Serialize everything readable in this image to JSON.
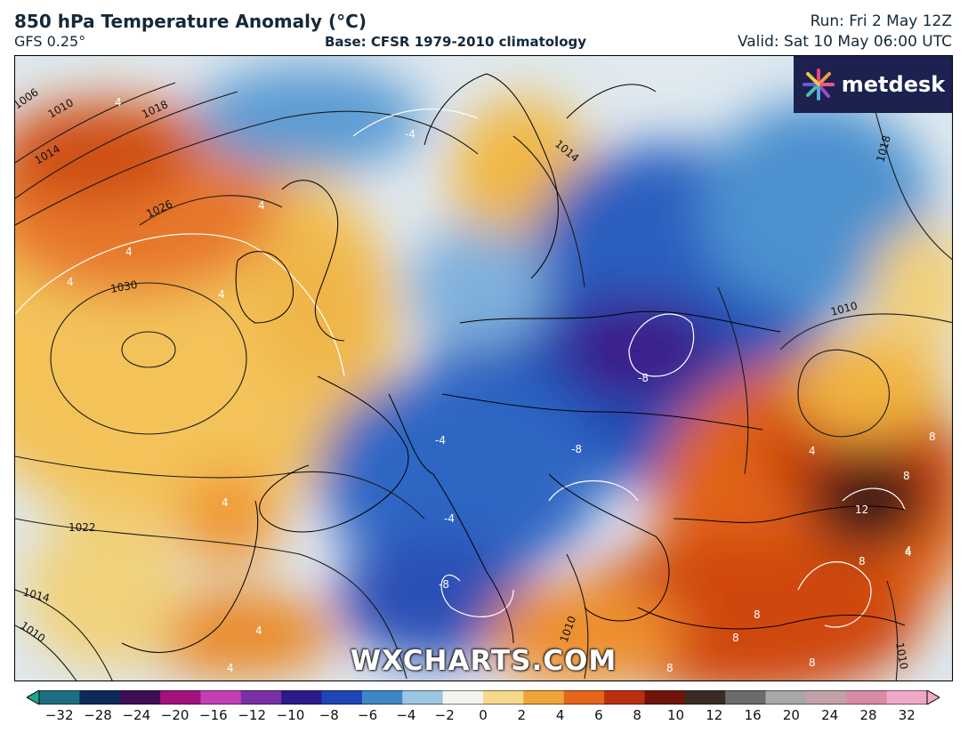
{
  "header": {
    "title": "850 hPa Temperature Anomaly (°C)",
    "model": "GFS 0.25°",
    "base": "Base: CFSR 1979-2010 climatology",
    "run": "Run: Fri 2 May 12Z",
    "valid": "Valid: Sat 10 May 06:00 UTC"
  },
  "branding": {
    "logo_text": "metdesk",
    "watermark": "WXCHARTS.COM"
  },
  "map": {
    "isobar_labels": [
      "1006",
      "1010",
      "1014",
      "1018",
      "1026",
      "1030",
      "1022",
      "1014",
      "1010",
      "1014",
      "1018",
      "1010",
      "1010",
      "1010"
    ],
    "anomaly_labels": [
      "4",
      "-4",
      "4",
      "4",
      "4",
      "4",
      "-8",
      "-8",
      "-4",
      "-4",
      "4",
      "4",
      "4",
      "8",
      "8",
      "12",
      "8",
      "4",
      "8",
      "8",
      "8",
      "-8",
      "4",
      "4",
      "8"
    ],
    "colors": {
      "strong_cold": "#2a0a6a",
      "cold": "#1f4fbf",
      "cool": "#6fa8d8",
      "neutral": "#e8eef2",
      "mild": "#f5d77a",
      "warm": "#f08a24",
      "hot": "#c83a10",
      "very_hot": "#3a1810"
    }
  },
  "colorbar": {
    "ticks": [
      "−32",
      "−28",
      "−24",
      "−20",
      "−16",
      "−12",
      "−10",
      "−8",
      "−6",
      "−4",
      "−2",
      "0",
      "2",
      "4",
      "6",
      "8",
      "10",
      "12",
      "16",
      "20",
      "24",
      "28",
      "32"
    ],
    "colors": [
      "#1aa88a",
      "#1d6e80",
      "#0f2a5a",
      "#3c0f52",
      "#a3127c",
      "#c23fb6",
      "#7a30a6",
      "#2a1a8a",
      "#1d45b4",
      "#3e86c8",
      "#9cc6e2",
      "#f4f4f0",
      "#f6d98a",
      "#f0a43a",
      "#e4651c",
      "#b8300e",
      "#6e1408",
      "#3a2a24",
      "#6b6b6b",
      "#a8a8a8",
      "#c2a1a8",
      "#d98aa5",
      "#f0a8c8"
    ]
  }
}
